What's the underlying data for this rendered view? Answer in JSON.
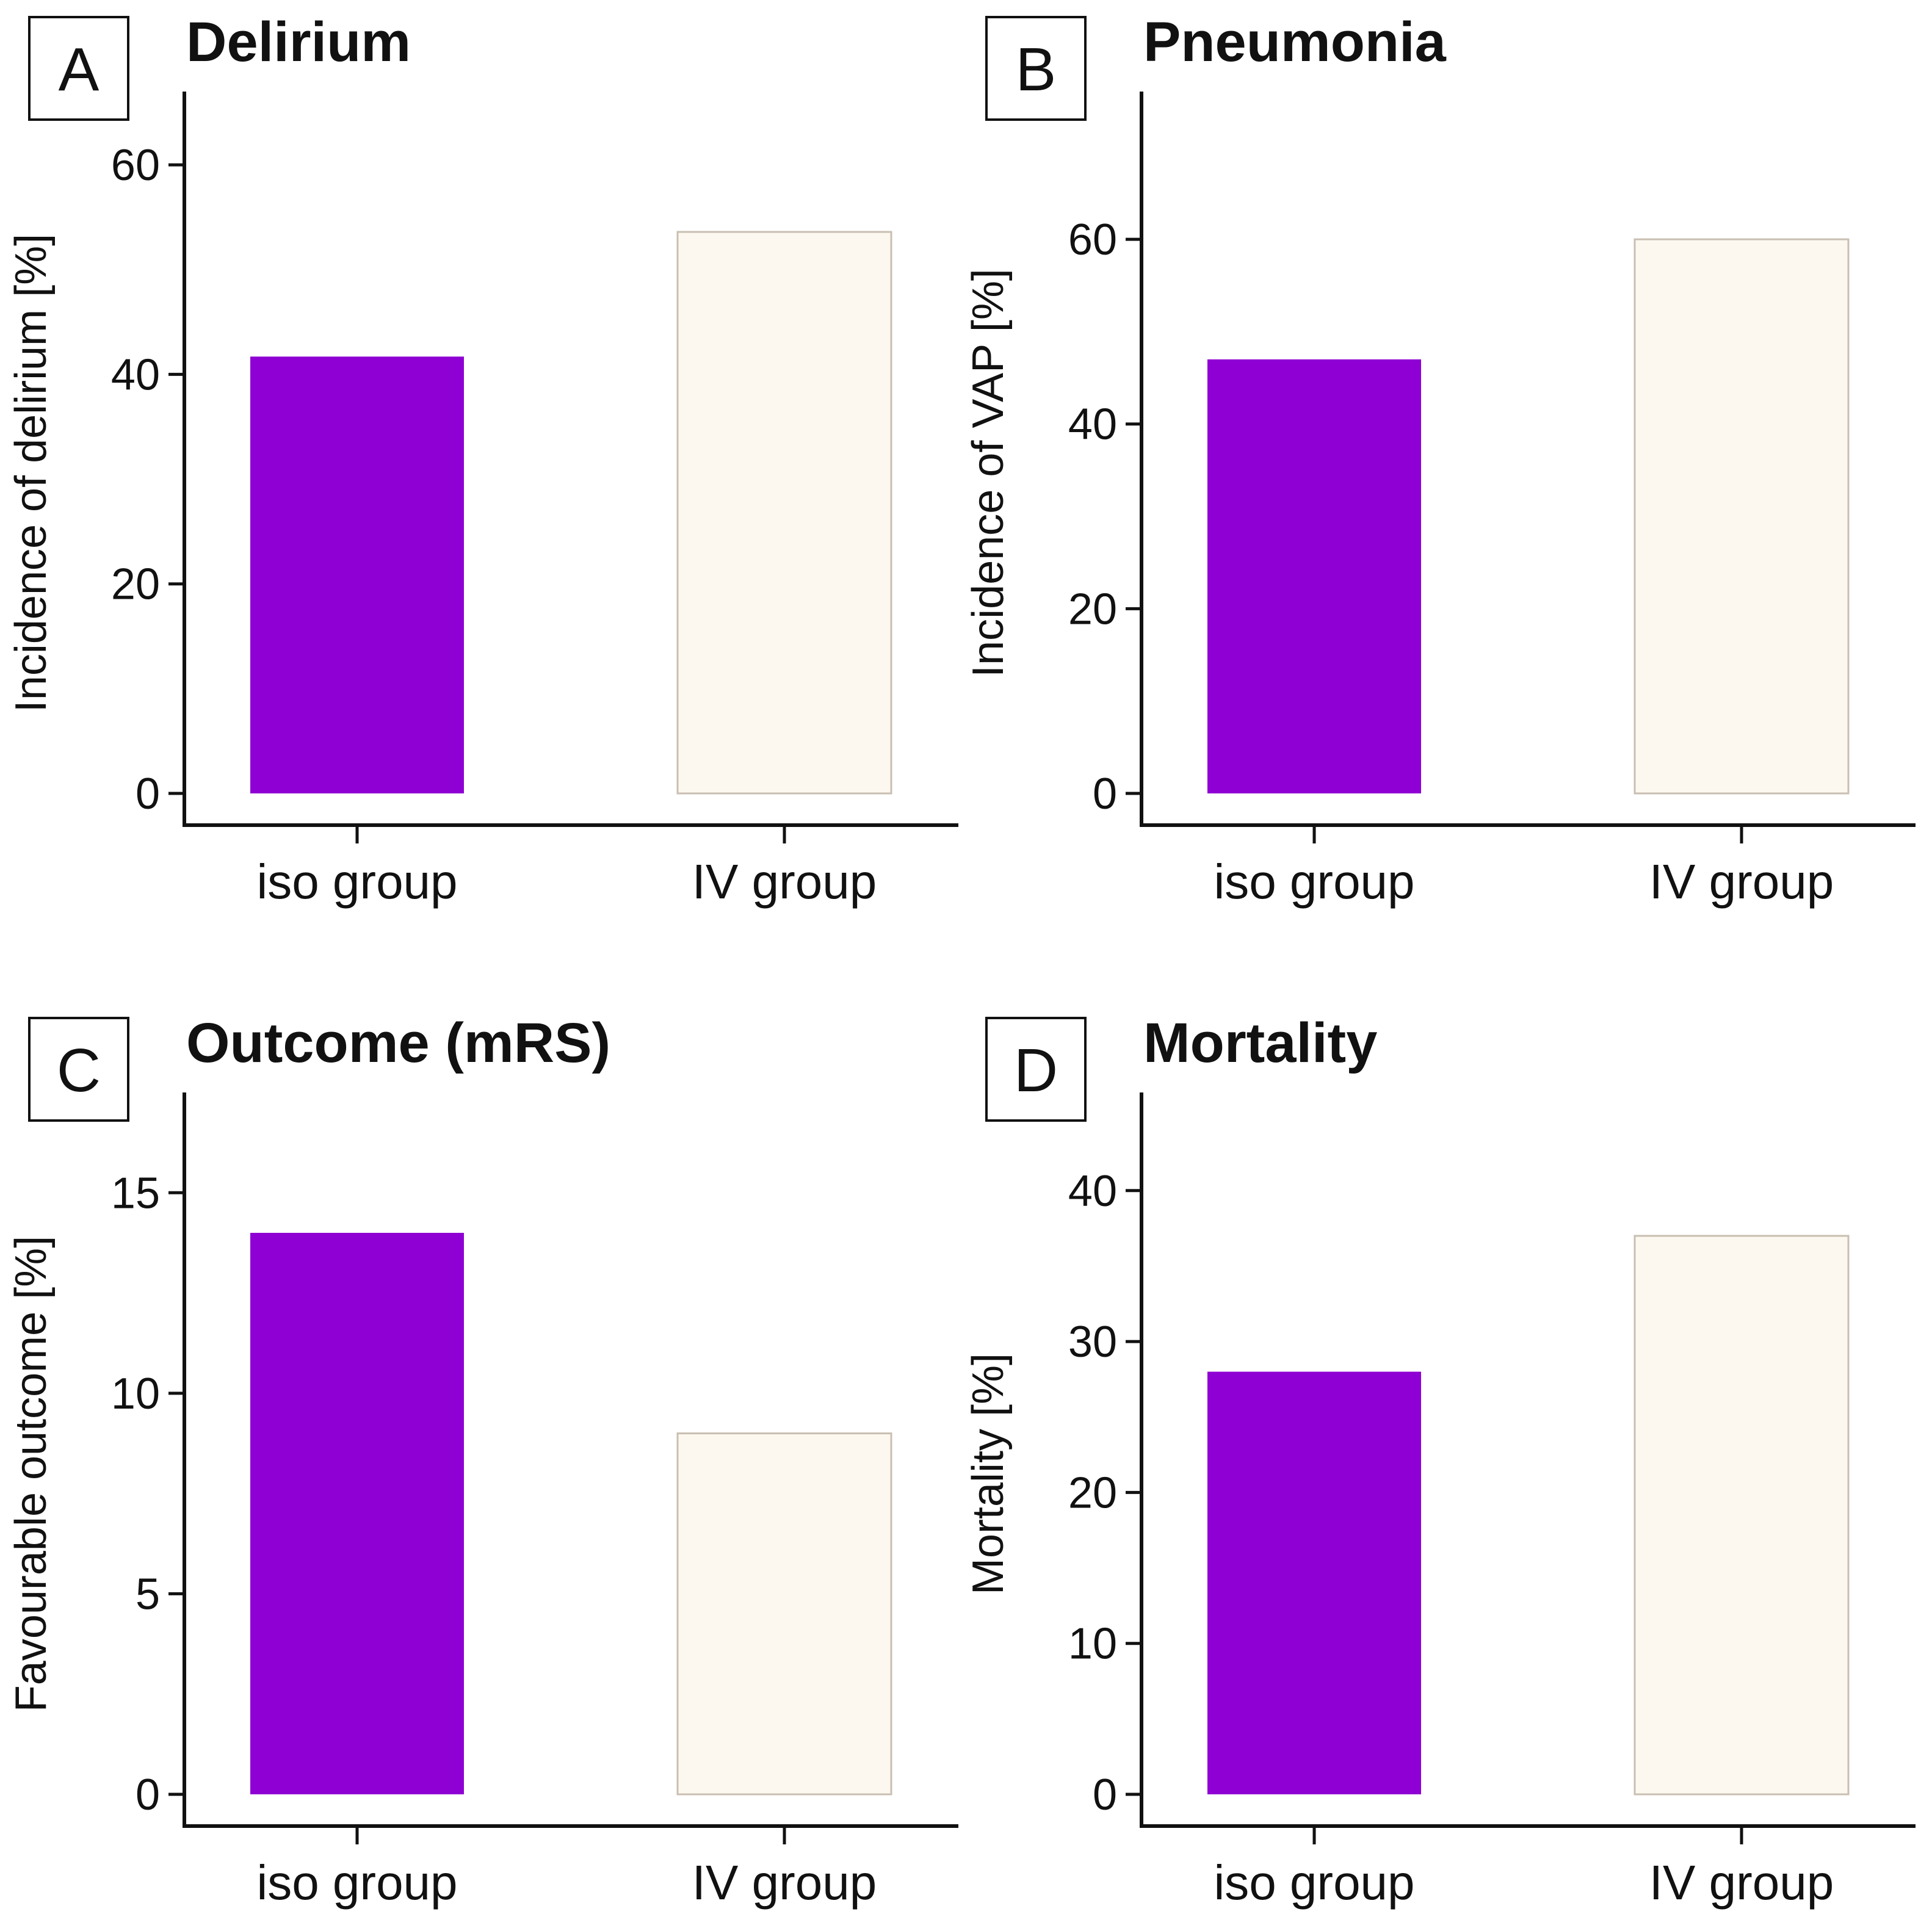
{
  "figure": {
    "colors": {
      "iso_fill": "#8E00D3",
      "iv_fill": "#FCF8EF",
      "iv_stroke": "#C9BFB2",
      "axis": "#111111",
      "letter_box": "#111111"
    }
  },
  "chart_data": [
    {
      "type": "bar",
      "panel": "A",
      "title": "Delirium",
      "categories": [
        "iso group",
        "IV group"
      ],
      "values": [
        41.7,
        53.6
      ],
      "xlabel": "",
      "ylabel": "Incidence of delirium [%]",
      "ylim": [
        0,
        67
      ],
      "yticks": [
        0,
        20,
        40,
        60
      ],
      "ytick_labels": [
        "0",
        "20",
        "40",
        "60"
      ]
    },
    {
      "type": "bar",
      "panel": "B",
      "title": "Pneumonia",
      "categories": [
        "iso group",
        "IV group"
      ],
      "values": [
        47,
        60
      ],
      "xlabel": "",
      "ylabel": "Incidence of VAP [%]",
      "ylim": [
        0,
        76
      ],
      "yticks": [
        0,
        20,
        40,
        60
      ],
      "ytick_labels": [
        "0",
        "20",
        "40",
        "60"
      ]
    },
    {
      "type": "bar",
      "panel": "C",
      "title": "Outcome (mRS)",
      "categories": [
        "iso group",
        "IV group"
      ],
      "values": [
        14,
        9
      ],
      "xlabel": "",
      "ylabel": "Favourable outcome [%]",
      "ylim": [
        0,
        17.5
      ],
      "yticks": [
        0,
        5,
        10,
        15
      ],
      "ytick_labels": [
        "0",
        "5",
        "10",
        "15"
      ]
    },
    {
      "type": "bar",
      "panel": "D",
      "title": "Mortality",
      "categories": [
        "iso group",
        "IV group"
      ],
      "values": [
        28,
        37
      ],
      "xlabel": "",
      "ylabel": "Mortality [%]",
      "ylim": [
        0,
        46.5
      ],
      "yticks": [
        0,
        10,
        20,
        30,
        40
      ],
      "ytick_labels": [
        "0",
        "10",
        "20",
        "30",
        "40"
      ]
    }
  ]
}
